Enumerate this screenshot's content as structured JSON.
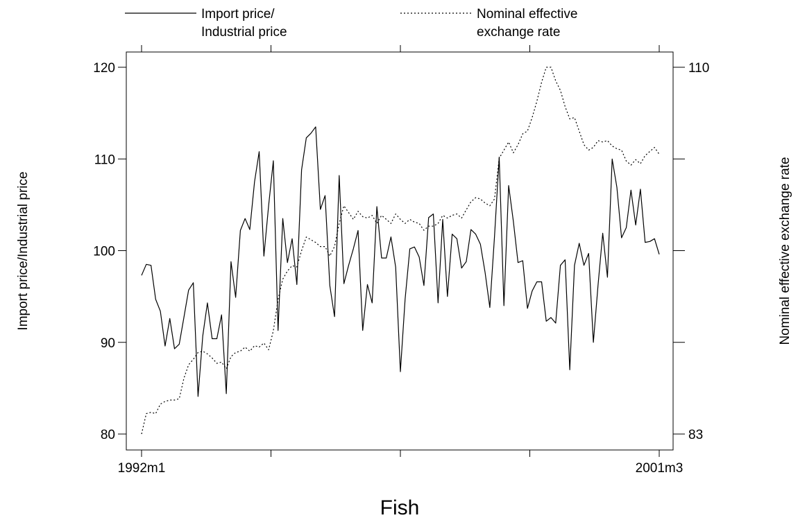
{
  "chart_data": {
    "type": "line",
    "title": "Fish",
    "x_start_label": "1992m1",
    "x_end_label": "2001m3",
    "x_tick_labels": [
      "1992m1",
      "",
      "",
      "",
      "2001m3"
    ],
    "left_axis": {
      "label": "Import price/Industrial price",
      "range": [
        80,
        120
      ],
      "ticks": [
        80,
        90,
        100,
        110,
        120
      ]
    },
    "right_axis": {
      "label": "Nominal effective exchange rate",
      "range": [
        83,
        110
      ],
      "ticks": [
        83,
        110
      ]
    },
    "legend": [
      {
        "label_lines": [
          "Import price/",
          "Industrial price"
        ],
        "style": "solid"
      },
      {
        "label_lines": [
          "Nominal effective",
          "exchange rate"
        ],
        "style": "dotted"
      }
    ],
    "grid": false,
    "legend_position": "top",
    "series": [
      {
        "name": "Import price/ Industrial price",
        "axis": "left",
        "values": [
          97.3,
          98.5,
          98.4,
          94.7,
          93.4,
          89.6,
          92.6,
          89.3,
          89.8,
          92.7,
          95.7,
          96.5,
          84.1,
          90.7,
          94.3,
          90.4,
          90.4,
          93.0,
          84.4,
          98.8,
          94.9,
          102.2,
          103.5,
          102.3,
          107.5,
          110.8,
          99.4,
          104.9,
          109.8,
          91.3,
          103.5,
          98.7,
          101.3,
          96.3,
          108.8,
          112.3,
          112.8,
          113.5,
          104.5,
          106.0,
          96.2,
          92.8,
          108.2,
          96.4,
          98.4,
          100.2,
          102.2,
          91.3,
          96.3,
          94.3,
          104.8,
          99.2,
          99.2,
          101.5,
          98.2,
          86.8,
          94.7,
          100.2,
          100.4,
          99.3,
          96.2,
          103.6,
          104.0,
          94.3,
          103.4,
          95.0,
          101.8,
          101.3,
          98.1,
          98.8,
          102.3,
          101.8,
          100.7,
          97.6,
          93.8,
          101.5,
          110.2,
          94.0,
          107.1,
          103.2,
          98.7,
          98.9,
          93.7,
          95.6,
          96.6,
          96.6,
          92.3,
          92.7,
          92.1,
          98.4,
          99.0,
          87.0,
          98.4,
          100.8,
          98.4,
          99.7,
          90.0,
          96.2,
          101.9,
          97.1,
          110.0,
          106.9,
          101.4,
          102.5,
          106.6,
          102.8,
          106.7,
          100.9,
          101.0,
          101.3,
          99.6
        ]
      },
      {
        "name": "Nominal effective exchange rate",
        "axis": "right",
        "values": [
          83.0,
          84.5,
          84.6,
          84.5,
          85.2,
          85.4,
          85.5,
          85.5,
          85.6,
          87.1,
          88.1,
          88.5,
          89.0,
          89.1,
          88.9,
          88.6,
          88.2,
          88.3,
          87.8,
          88.7,
          89.0,
          89.1,
          89.4,
          89.1,
          89.5,
          89.4,
          89.7,
          89.2,
          90.6,
          92.9,
          94.4,
          95.0,
          95.4,
          95.3,
          96.5,
          97.5,
          97.3,
          97.1,
          96.8,
          96.8,
          96.1,
          96.8,
          98.5,
          99.8,
          99.3,
          98.8,
          99.4,
          99.0,
          98.9,
          99.1,
          98.5,
          99.1,
          98.8,
          98.5,
          99.2,
          98.8,
          98.5,
          98.8,
          98.6,
          98.5,
          98.0,
          98.3,
          98.3,
          98.5,
          99.1,
          98.9,
          99.1,
          99.2,
          98.9,
          99.5,
          100.1,
          100.4,
          100.3,
          100.0,
          99.8,
          100.3,
          103.3,
          103.9,
          104.5,
          103.7,
          104.3,
          105.1,
          105.3,
          106.3,
          107.5,
          108.9,
          110.0,
          110.0,
          109.0,
          108.3,
          107.1,
          106.2,
          106.3,
          105.3,
          104.3,
          103.9,
          104.1,
          104.6,
          104.5,
          104.6,
          104.2,
          104.0,
          103.9,
          103.1,
          102.8,
          103.2,
          102.9,
          103.5,
          103.8,
          104.1,
          103.6
        ]
      }
    ]
  }
}
